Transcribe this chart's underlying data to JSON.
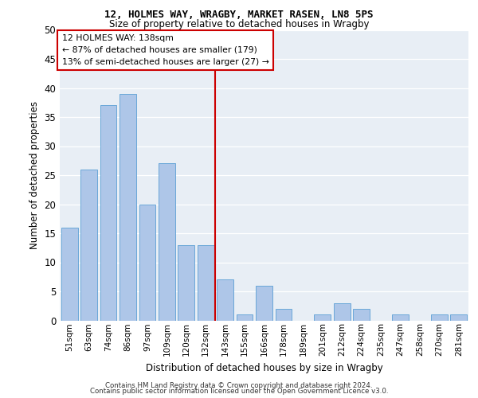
{
  "title1": "12, HOLMES WAY, WRAGBY, MARKET RASEN, LN8 5PS",
  "title2": "Size of property relative to detached houses in Wragby",
  "xlabel": "Distribution of detached houses by size in Wragby",
  "ylabel": "Number of detached properties",
  "bar_labels": [
    "51sqm",
    "63sqm",
    "74sqm",
    "86sqm",
    "97sqm",
    "109sqm",
    "120sqm",
    "132sqm",
    "143sqm",
    "155sqm",
    "166sqm",
    "178sqm",
    "189sqm",
    "201sqm",
    "212sqm",
    "224sqm",
    "235sqm",
    "247sqm",
    "258sqm",
    "270sqm",
    "281sqm"
  ],
  "bar_values": [
    16,
    26,
    37,
    39,
    20,
    27,
    13,
    13,
    7,
    1,
    6,
    2,
    0,
    1,
    3,
    2,
    0,
    1,
    0,
    1,
    1
  ],
  "bar_color": "#aec6e8",
  "bar_edge_color": "#5a9fd4",
  "annotation_label": "12 HOLMES WAY: 138sqm",
  "annotation_line1": "← 87% of detached houses are smaller (179)",
  "annotation_line2": "13% of semi-detached houses are larger (27) →",
  "vline_color": "#cc0000",
  "vline_x_index": 7.5,
  "ylim": [
    0,
    50
  ],
  "yticks": [
    0,
    5,
    10,
    15,
    20,
    25,
    30,
    35,
    40,
    45,
    50
  ],
  "bg_color": "#e8eef5",
  "footer1": "Contains HM Land Registry data © Crown copyright and database right 2024.",
  "footer2": "Contains public sector information licensed under the Open Government Licence v3.0."
}
